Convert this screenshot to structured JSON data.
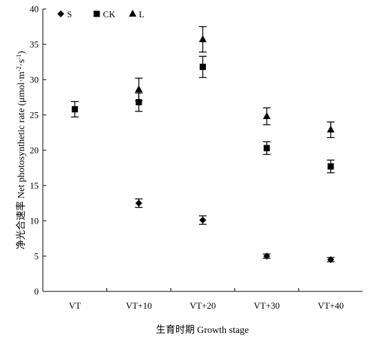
{
  "chart_data": {
    "type": "scatter",
    "xlabel": "生育时期 Growth stage",
    "ylabel": "净光合速率 Net photosynthetic rate (μmol·m",
    "ylabel_sup1": "-2",
    "ylabel_mid": "·s",
    "ylabel_sup2": "-1",
    "ylabel_end": ")",
    "categories": [
      "VT",
      "VT+10",
      "VT+20",
      "VT+30",
      "VT+40"
    ],
    "ylim": [
      0,
      40
    ],
    "yticks": [
      0,
      5,
      10,
      15,
      20,
      25,
      30,
      35,
      40
    ],
    "ytick_labels": [
      "0",
      "5",
      "10",
      "15",
      "20",
      "25",
      "30",
      "35",
      "40"
    ],
    "legend_position": "top-left",
    "grid": false,
    "series": [
      {
        "name": "S",
        "marker": "diamond",
        "values": [
          null,
          12.5,
          10.1,
          5.0,
          4.5
        ],
        "errors": [
          null,
          0.6,
          0.6,
          0.3,
          0.3
        ]
      },
      {
        "name": "CK",
        "marker": "square",
        "values": [
          25.8,
          26.8,
          31.8,
          20.3,
          17.7
        ],
        "errors": [
          1.1,
          1.3,
          1.5,
          0.9,
          0.9
        ]
      },
      {
        "name": "L",
        "marker": "triangle",
        "values": [
          null,
          28.6,
          35.7,
          24.8,
          22.9
        ],
        "errors": [
          null,
          1.6,
          1.8,
          1.2,
          1.1
        ]
      }
    ]
  }
}
